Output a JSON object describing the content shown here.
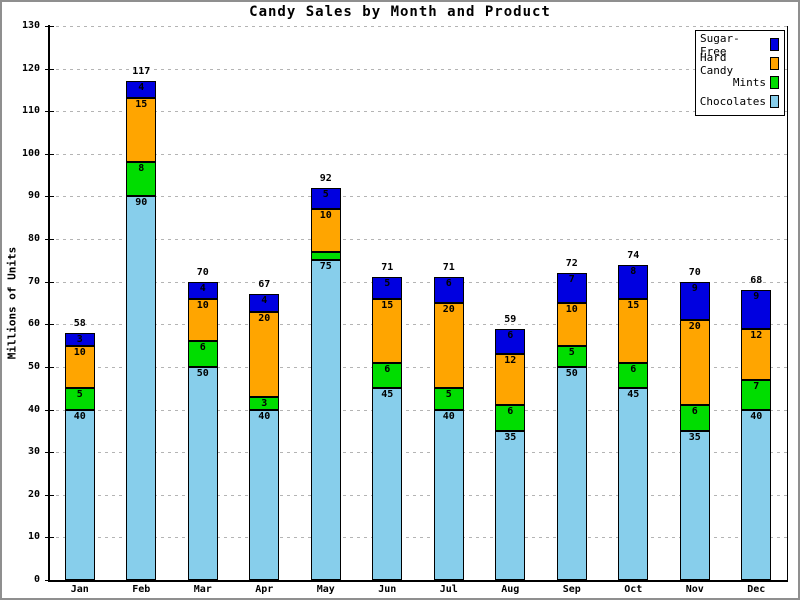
{
  "chart_data": {
    "type": "bar",
    "stacked": true,
    "title": "Candy Sales by Month and Product",
    "ylabel": "Millions of Units",
    "categories": [
      "Jan",
      "Feb",
      "Mar",
      "Apr",
      "May",
      "Jun",
      "Jul",
      "Aug",
      "Sep",
      "Oct",
      "Nov",
      "Dec"
    ],
    "series": [
      {
        "name": "Chocolates",
        "color": "#87ceeb",
        "values": [
          40,
          90,
          50,
          40,
          75,
          45,
          40,
          35,
          50,
          45,
          35,
          40
        ]
      },
      {
        "name": "Mints",
        "color": "#00dd00",
        "values": [
          5,
          8,
          6,
          3,
          2,
          6,
          5,
          6,
          5,
          6,
          6,
          7
        ]
      },
      {
        "name": "Hard Candy",
        "color": "#ffa500",
        "values": [
          10,
          15,
          10,
          20,
          10,
          15,
          20,
          12,
          10,
          15,
          20,
          12
        ]
      },
      {
        "name": "Sugar-Free",
        "color": "#0000e0",
        "values": [
          3,
          4,
          4,
          4,
          5,
          5,
          6,
          6,
          7,
          8,
          9,
          9
        ]
      }
    ],
    "totals": [
      58,
      117,
      70,
      67,
      92,
      71,
      71,
      59,
      72,
      74,
      70,
      68
    ],
    "ylim": [
      0,
      130
    ],
    "ytick_step": 10,
    "grid": true,
    "legend_position": "top-right",
    "legend_order": [
      "Sugar-Free",
      "Hard Candy",
      "Mints",
      "Chocolates"
    ],
    "min_segment_label_value": 3
  },
  "colors": {
    "grid": "#b4b4b4",
    "axis": "#000000",
    "background": "#ffffff",
    "frame_border": "#8f8f8f",
    "text": "#000000"
  }
}
